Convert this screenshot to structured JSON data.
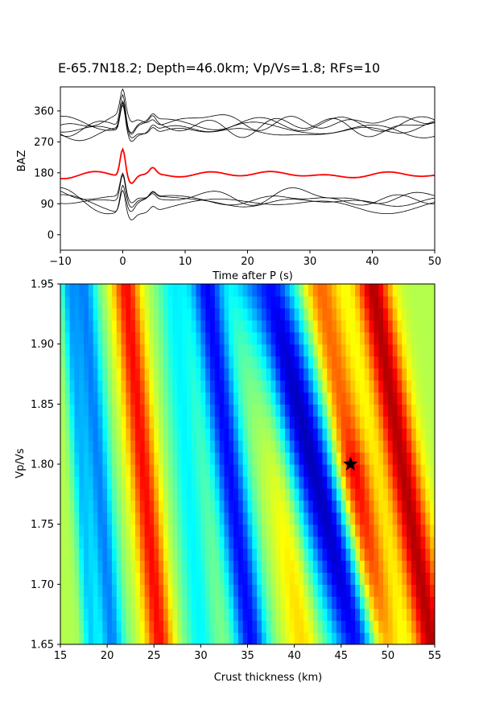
{
  "title": "E-65.7N18.2; Depth=46.0km; Vp/Vs=1.8; RFs=10",
  "chart_data": [
    {
      "type": "line",
      "name": "receiver-functions",
      "xlabel": "Time after P (s)",
      "ylabel": "BAZ",
      "xlim": [
        -10,
        50
      ],
      "ylim": [
        -45,
        430
      ],
      "xticks": [
        -10,
        0,
        10,
        20,
        30,
        40,
        50
      ],
      "xtick_labels": [
        "−10",
        "0",
        "10",
        "20",
        "30",
        "40",
        "50"
      ],
      "yticks": [
        0,
        90,
        180,
        270,
        360
      ],
      "ytick_labels": [
        "0",
        "90",
        "180",
        "270",
        "360"
      ],
      "stack_color": "#ff0000",
      "trace_color": "#000000",
      "traces": [
        {
          "baz": 330,
          "peak": 85,
          "seed": 1,
          "color": "#000000"
        },
        {
          "baz": 322,
          "peak": 95,
          "seed": 2,
          "color": "#000000"
        },
        {
          "baz": 315,
          "peak": 110,
          "seed": 3,
          "color": "#000000"
        },
        {
          "baz": 308,
          "peak": 95,
          "seed": 4,
          "color": "#000000"
        },
        {
          "baz": 300,
          "peak": 90,
          "seed": 5,
          "color": "#000000"
        },
        {
          "baz": 175,
          "peak": 95,
          "seed": 6,
          "color": "#ff0000"
        },
        {
          "baz": 110,
          "peak": 80,
          "seed": 7,
          "color": "#000000"
        },
        {
          "baz": 102,
          "peak": 90,
          "seed": 8,
          "color": "#000000"
        },
        {
          "baz": 95,
          "peak": 85,
          "seed": 9,
          "color": "#000000"
        },
        {
          "baz": 88,
          "peak": 80,
          "seed": 10,
          "color": "#000000"
        }
      ]
    },
    {
      "type": "heatmap",
      "name": "h-k-stacking",
      "xlabel": "Crust thickness (km)",
      "ylabel": "Vp/Vs",
      "xlim": [
        15,
        55
      ],
      "ylim": [
        1.65,
        1.95
      ],
      "xticks": [
        15,
        20,
        25,
        30,
        35,
        40,
        45,
        50,
        55
      ],
      "yticks": [
        1.65,
        1.7,
        1.75,
        1.8,
        1.85,
        1.9,
        1.95
      ],
      "ytick_labels": [
        "1.65",
        "1.70",
        "1.75",
        "1.80",
        "1.85",
        "1.90",
        "1.95"
      ],
      "colormap": "jet",
      "best_fit": {
        "thickness": 46.0,
        "vpvs": 1.8,
        "marker": "star"
      }
    }
  ]
}
